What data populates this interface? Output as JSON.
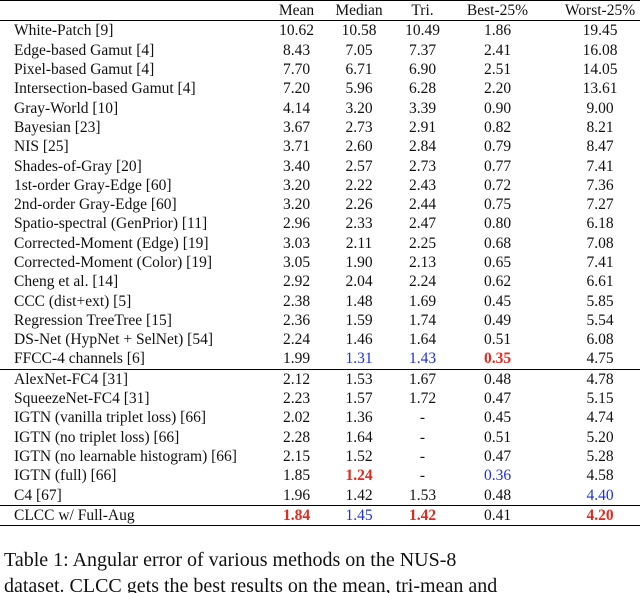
{
  "table": {
    "header": [
      "",
      "Mean",
      "Median",
      "Tri.",
      "Best-25%",
      "Worst-25%"
    ],
    "rows": [
      [
        "White-Patch [9]",
        "10.62",
        "10.58",
        "10.49",
        "1.86",
        "19.45"
      ],
      [
        "Edge-based Gamut [4]",
        "8.43",
        "7.05",
        "7.37",
        "2.41",
        "16.08"
      ],
      [
        "Pixel-based Gamut [4]",
        "7.70",
        "6.71",
        "6.90",
        "2.51",
        "14.05"
      ],
      [
        "Intersection-based Gamut [4]",
        "7.20",
        "5.96",
        "6.28",
        "2.20",
        "13.61"
      ],
      [
        "Gray-World [10]",
        "4.14",
        "3.20",
        "3.39",
        "0.90",
        "9.00"
      ],
      [
        "Bayesian [23]",
        "3.67",
        "2.73",
        "2.91",
        "0.82",
        "8.21"
      ],
      [
        "NIS [25]",
        "3.71",
        "2.60",
        "2.84",
        "0.79",
        "8.47"
      ],
      [
        "Shades-of-Gray [20]",
        "3.40",
        "2.57",
        "2.73",
        "0.77",
        "7.41"
      ],
      [
        "1st-order Gray-Edge [60]",
        "3.20",
        "2.22",
        "2.43",
        "0.72",
        "7.36"
      ],
      [
        "2nd-order Gray-Edge [60]",
        "3.20",
        "2.26",
        "2.44",
        "0.75",
        "7.27"
      ],
      [
        "Spatio-spectral (GenPrior) [11]",
        "2.96",
        "2.33",
        "2.47",
        "0.80",
        "6.18"
      ],
      [
        "Corrected-Moment (Edge) [19]",
        "3.03",
        "2.11",
        "2.25",
        "0.68",
        "7.08"
      ],
      [
        "Corrected-Moment (Color) [19]",
        "3.05",
        "1.90",
        "2.13",
        "0.65",
        "7.41"
      ],
      [
        "Cheng et al. [14]",
        "2.92",
        "2.04",
        "2.24",
        "0.62",
        "6.61"
      ],
      [
        "CCC (dist+ext) [5]",
        "2.38",
        "1.48",
        "1.69",
        "0.45",
        "5.85"
      ],
      [
        "Regression TreeTree [15]",
        "2.36",
        "1.59",
        "1.74",
        "0.49",
        "5.54"
      ],
      [
        "DS-Net (HypNet + SelNet) [54]",
        "2.24",
        "1.46",
        "1.64",
        "0.51",
        "6.08"
      ],
      [
        "FFCC-4 channels [6]",
        "1.99",
        "1.31",
        "1.43",
        "0.35",
        "4.75"
      ],
      [
        "AlexNet-FC4 [31]",
        "2.12",
        "1.53",
        "1.67",
        "0.48",
        "4.78"
      ],
      [
        "SqueezeNet-FC4 [31]",
        "2.23",
        "1.57",
        "1.72",
        "0.47",
        "5.15"
      ],
      [
        "IGTN (vanilla triplet loss) [66]",
        "2.02",
        "1.36",
        "-",
        "0.45",
        "4.74"
      ],
      [
        "IGTN (no triplet loss) [66]",
        "2.28",
        "1.64",
        "-",
        "0.51",
        "5.20"
      ],
      [
        "IGTN (no learnable histogram) [66]",
        "2.15",
        "1.52",
        "-",
        "0.47",
        "5.28"
      ],
      [
        "IGTN (full) [66]",
        "1.85",
        "1.24",
        "-",
        "0.36",
        "4.58"
      ],
      [
        "C4 [67]",
        "1.96",
        "1.42",
        "1.53",
        "0.48",
        "4.40"
      ],
      [
        "CLCC w/ Full-Aug",
        "1.84",
        "1.45",
        "1.42",
        "0.41",
        "4.20"
      ]
    ]
  },
  "caption": [
    "Table 1: Angular error of various methods on the NUS-8",
    "dataset. CLCC gets the best results on the mean, tri-mean and"
  ]
}
